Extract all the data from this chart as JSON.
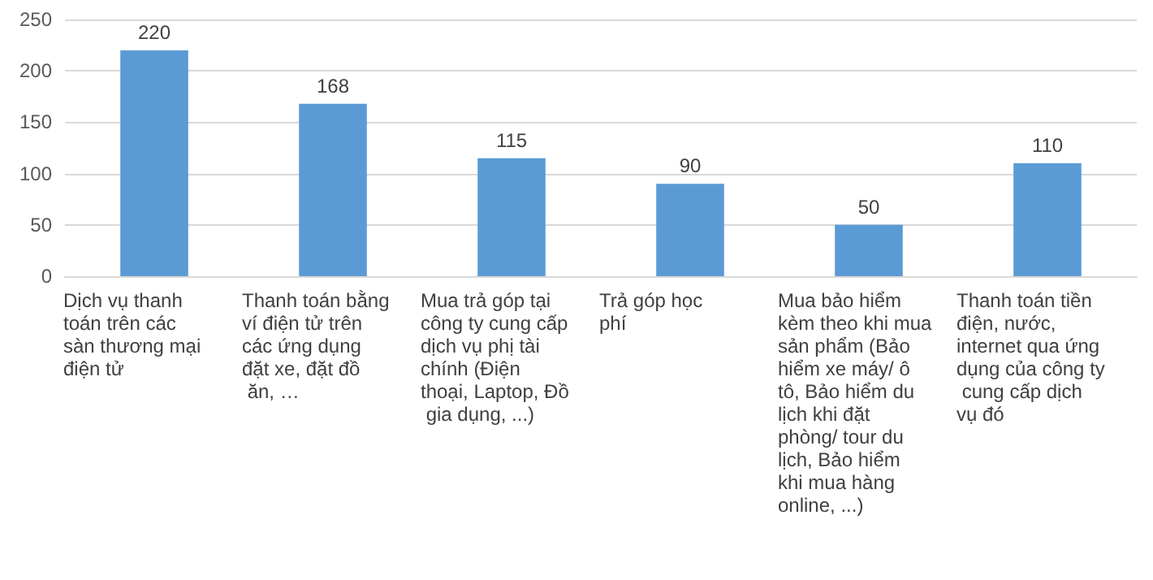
{
  "chart_data": {
    "type": "bar",
    "categories": [
      "Dịch vụ thanh toán trên các sàn thương mại điện tử",
      "Thanh toán bằng ví điện tử trên các ứng dụng đặt xe, đặt đồ ăn, …",
      "Mua trả góp tại công ty cung cấp dịch vụ phị tài chính (Điện thoại, Laptop, Đồ gia dụng, ...)",
      "Trả góp học phí",
      "Mua bảo hiểm kèm theo khi mua sản phẩm (Bảo hiểm xe máy/ ô tô, Bảo hiểm du lịch khi đặt phòng/ tour du lịch, Bảo hiểm khi mua hàng online, ...)",
      "Thanh toán tiền điện, nước, internet qua ứng dụng của công ty cung cấp dịch vụ đó"
    ],
    "values": [
      220,
      168,
      115,
      90,
      50,
      110
    ],
    "color": "#5b9bd5",
    "ylim": [
      0,
      250
    ],
    "yticks": [
      0,
      50,
      100,
      150,
      200,
      250
    ],
    "grid": "y",
    "data_labels": true
  }
}
